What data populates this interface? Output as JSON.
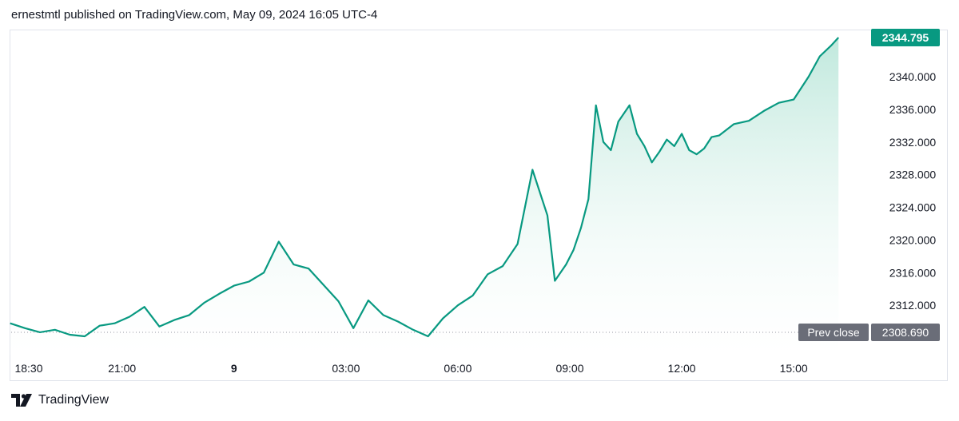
{
  "header": {
    "text": "ernestmtl published on TradingView.com, May 09, 2024 16:05 UTC-4"
  },
  "footer": {
    "brand": "TradingView"
  },
  "colors": {
    "line": "#089981",
    "area_top": "#b9e6d9",
    "area_bottom": "#ffffff",
    "grid": "#ffffff",
    "axis_text": "#131722",
    "prev_close_bg": "#6a6d78"
  },
  "chart_data": {
    "type": "area",
    "grid": false,
    "ylim": [
      2306.5,
      2346.0
    ],
    "y_ticks": [
      2312.0,
      2316.0,
      2320.0,
      2324.0,
      2328.0,
      2332.0,
      2336.0,
      2340.0
    ],
    "y_tick_labels": [
      "2312.000",
      "2316.000",
      "2320.000",
      "2324.000",
      "2328.000",
      "2332.000",
      "2336.000",
      "2340.000"
    ],
    "x_range_hours": [
      18.0,
      34.4
    ],
    "x_ticks": [
      {
        "h": 18.5,
        "label": "18:30"
      },
      {
        "h": 21.0,
        "label": "21:00"
      },
      {
        "h": 24.0,
        "label": "9"
      },
      {
        "h": 27.0,
        "label": "03:00"
      },
      {
        "h": 30.0,
        "label": "06:00"
      },
      {
        "h": 33.0,
        "label": "09:00"
      },
      {
        "h": 36.0,
        "label": "12:00"
      },
      {
        "h": 39.0,
        "label": "15:00"
      }
    ],
    "last_price": {
      "value": 2344.795,
      "label": "2344.795"
    },
    "prev_close": {
      "value": 2308.69,
      "label": "Prev close",
      "value_label": "2308.690"
    },
    "series": [
      {
        "x": [
          18.0,
          18.4,
          18.8,
          19.2,
          19.6,
          20.0,
          20.4,
          20.8,
          21.2,
          21.6,
          22.0,
          22.4,
          22.8,
          23.2,
          23.6,
          24.0,
          24.4,
          24.8,
          25.2,
          25.6,
          26.0,
          26.4,
          26.8,
          27.2,
          27.6,
          28.0,
          28.4,
          28.8,
          29.2,
          29.6,
          30.0,
          30.4,
          30.8,
          31.2,
          31.6,
          32.0,
          32.4,
          32.6,
          32.9,
          33.1,
          33.3,
          33.5,
          33.7,
          33.9,
          34.1,
          34.3,
          34.6,
          34.8,
          35.0,
          35.2,
          35.4,
          35.6,
          35.8,
          36.0,
          36.2,
          36.4,
          36.6,
          36.8,
          37.0,
          37.4,
          37.8,
          38.2,
          38.6,
          39.0,
          39.4,
          39.7,
          40.0,
          40.2
        ],
        "values": [
          2309.8,
          2309.2,
          2308.7,
          2309.0,
          2308.4,
          2308.2,
          2309.5,
          2309.8,
          2310.6,
          2311.8,
          2309.4,
          2310.2,
          2310.8,
          2312.3,
          2313.4,
          2314.4,
          2314.9,
          2316.0,
          2319.8,
          2317.0,
          2316.5,
          2314.5,
          2312.5,
          2309.2,
          2312.6,
          2310.8,
          2310.0,
          2309.0,
          2308.2,
          2310.4,
          2312.0,
          2313.2,
          2315.8,
          2316.8,
          2319.5,
          2328.6,
          2323.0,
          2315.0,
          2317.0,
          2318.8,
          2321.5,
          2325.0,
          2336.5,
          2332.0,
          2331.0,
          2334.5,
          2336.5,
          2333.0,
          2331.5,
          2329.5,
          2330.8,
          2332.3,
          2331.5,
          2333.0,
          2331.0,
          2330.5,
          2331.2,
          2332.6,
          2332.8,
          2334.2,
          2334.6,
          2335.8,
          2336.8,
          2337.2,
          2340.0,
          2342.5,
          2343.8,
          2344.795
        ]
      }
    ]
  }
}
